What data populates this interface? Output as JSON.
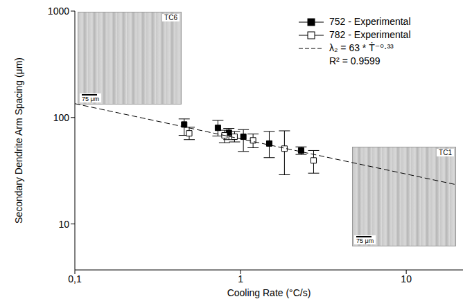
{
  "chart_data": {
    "type": "scatter",
    "x_label": "Cooling Rate (°C/s)",
    "y_label": "Secondary Dendrite Arm Spacing (μm)",
    "log": true,
    "grid": false,
    "legend": "upper right",
    "xlim": [
      0.1,
      22
    ],
    "ylim": [
      3.7,
      1000
    ],
    "xticks": [
      {
        "value": 0.1,
        "label": "0,1"
      },
      1,
      10
    ],
    "yticks": [
      10,
      100,
      1000
    ],
    "series": [
      {
        "name": "752 - Experimental",
        "type": "scatter",
        "color": "#000000",
        "marker": "square",
        "x": [
          0.457,
          0.73,
          0.85,
          1.04,
          1.49,
          2.32
        ],
        "values": [
          86,
          80,
          72,
          66,
          57,
          49
        ],
        "y_low": [
          68,
          67,
          62,
          48,
          42,
          45
        ],
        "y_high": [
          97,
          94,
          79,
          77,
          74,
          53
        ]
      },
      {
        "name": "782 - Experimental",
        "type": "scatter",
        "color": "#000000",
        "marker": "square_open",
        "x": [
          0.49,
          0.8,
          0.92,
          1.19,
          1.84,
          2.76
        ],
        "values": [
          71,
          68,
          66,
          61,
          51,
          39.5
        ],
        "y_low": [
          62,
          58,
          59,
          52,
          29,
          30
        ],
        "y_high": [
          81,
          76,
          74,
          70,
          75,
          49
        ]
      },
      {
        "name": "λ₂ = 63 * Ṫ⁻⁰·³³",
        "type": "line",
        "color": "#000000",
        "line_style": "dashed",
        "x": [
          0.1,
          20
        ],
        "values": [
          135,
          23.4
        ]
      }
    ],
    "annotations": [
      "R² = 0.9599"
    ],
    "insets": [
      {
        "label": "TC6",
        "scale": "75 μm"
      },
      {
        "label": "TC1",
        "scale": "75 μm"
      }
    ]
  }
}
